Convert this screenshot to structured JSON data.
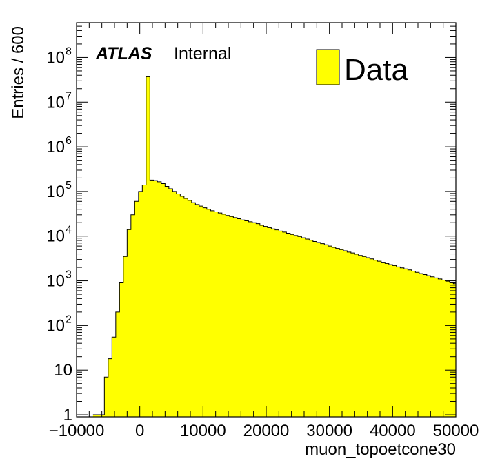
{
  "chart_data": {
    "type": "bar",
    "histogram": true,
    "xlabel": "muon_topoetcone30",
    "ylabel": "Entries / 600",
    "xlim": [
      -10000,
      50000
    ],
    "ylim": [
      0.9,
      600000000
    ],
    "yscale": "log",
    "bin_width": 600,
    "x_ticks": [
      -10000,
      0,
      10000,
      20000,
      30000,
      40000,
      50000
    ],
    "x_tick_labels": [
      "−10000",
      "0",
      "10000",
      "20000",
      "30000",
      "40000",
      "50000"
    ],
    "y_ticks": [
      {
        "value": 1,
        "base": "1",
        "exp": ""
      },
      {
        "value": 10,
        "base": "10",
        "exp": ""
      },
      {
        "value": 100,
        "base": "10",
        "exp": "2"
      },
      {
        "value": 1000,
        "base": "10",
        "exp": "3"
      },
      {
        "value": 10000,
        "base": "10",
        "exp": "4"
      },
      {
        "value": 100000,
        "base": "10",
        "exp": "5"
      },
      {
        "value": 1000000,
        "base": "10",
        "exp": "6"
      },
      {
        "value": 10000000,
        "base": "10",
        "exp": "7"
      },
      {
        "value": 100000000,
        "base": "10",
        "exp": "8"
      }
    ],
    "annotation_bold": "ATLAS",
    "annotation_text": "Internal",
    "legend": {
      "placement": "top-right",
      "label": "Data"
    },
    "colors": {
      "fill": "#ffff00",
      "line": "#000000"
    },
    "series": [
      {
        "name": "Data",
        "bin_start": -7400,
        "values": [
          1,
          1,
          1,
          7,
          18,
          55,
          200,
          900,
          3500,
          14000,
          30000,
          60000,
          100000,
          140000,
          37000000,
          180000,
          175000,
          165000,
          150000,
          130000,
          115000,
          100000,
          88000,
          78000,
          70000,
          63000,
          56000,
          51000,
          47000,
          43000,
          40000,
          37000,
          35000,
          33000,
          31000,
          29000,
          27500,
          26000,
          24500,
          23000,
          22000,
          21000,
          20000,
          19000,
          17500,
          16500,
          15500,
          14500,
          13800,
          13000,
          12300,
          11600,
          10900,
          10300,
          9800,
          9200,
          8600,
          8100,
          7600,
          7200,
          6800,
          6400,
          6000,
          5600,
          5300,
          5000,
          4700,
          4400,
          4200,
          3950,
          3700,
          3500,
          3300,
          3100,
          2900,
          2750,
          2600,
          2450,
          2300,
          2200,
          2050,
          1950,
          1850,
          1750,
          1650,
          1550,
          1450,
          1380,
          1300,
          1230,
          1160,
          1100,
          1040,
          980,
          920,
          860,
          800,
          760,
          720,
          680,
          640,
          600,
          570,
          540
        ]
      }
    ]
  }
}
